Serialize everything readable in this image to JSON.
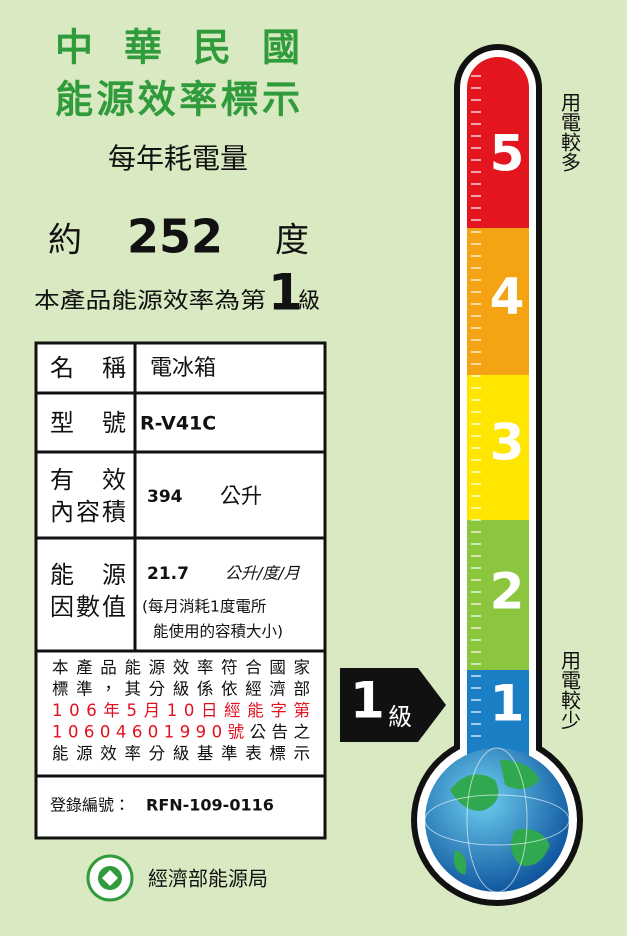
{
  "header": {
    "title": [
      "中華民國",
      "能源效率標示"
    ],
    "subtitle": "每年耗電量"
  },
  "consumption": {
    "prefix": "約",
    "value": 252,
    "unit": "度"
  },
  "grade_line": {
    "text": "本產品能源效率為第",
    "grade": 1,
    "suffix": "級"
  },
  "table": {
    "rows": [
      {
        "label": [
          "名稱"
        ],
        "value": "電冰箱"
      },
      {
        "label": [
          "型號"
        ],
        "value": "R-V41C"
      },
      {
        "label": [
          "有效",
          "內容積"
        ],
        "value": 394,
        "unit": "公升"
      },
      {
        "label": [
          "能源",
          "因數值"
        ],
        "value": 21.7,
        "unit": "公升/度/月",
        "note": [
          "(每月消耗1度電所",
          "能使用的容積大小)"
        ]
      }
    ],
    "notice": [
      [
        {
          "text": "本產品能源效率符合國家"
        }
      ],
      [
        {
          "text": "標準，其分級係依經濟部"
        }
      ],
      [
        {
          "text": "106年5月10日經能字第",
          "color": "#e3101f"
        }
      ],
      [
        {
          "text": "10604601990號",
          "color": "#e3101f"
        },
        {
          "text": "公告之"
        }
      ],
      [
        {
          "text": "能源效率分級基準表標示"
        }
      ]
    ],
    "registration": {
      "label": "登錄編號：",
      "value": "RFN-109-0116"
    }
  },
  "arrow": {
    "grade": 1,
    "suffix": "級"
  },
  "scale": {
    "levels": [
      {
        "label": 5,
        "color": "#e3151f"
      },
      {
        "label": 4,
        "color": "#f4a312"
      },
      {
        "label": 3,
        "color": "#ffe600"
      },
      {
        "label": 2,
        "color": "#8cc63f"
      },
      {
        "label": 1,
        "color": "#1b7fc6"
      }
    ],
    "top_label": "用電較多",
    "bottom_label": "用電較少"
  },
  "footer": {
    "agency": "經濟部能源局"
  }
}
